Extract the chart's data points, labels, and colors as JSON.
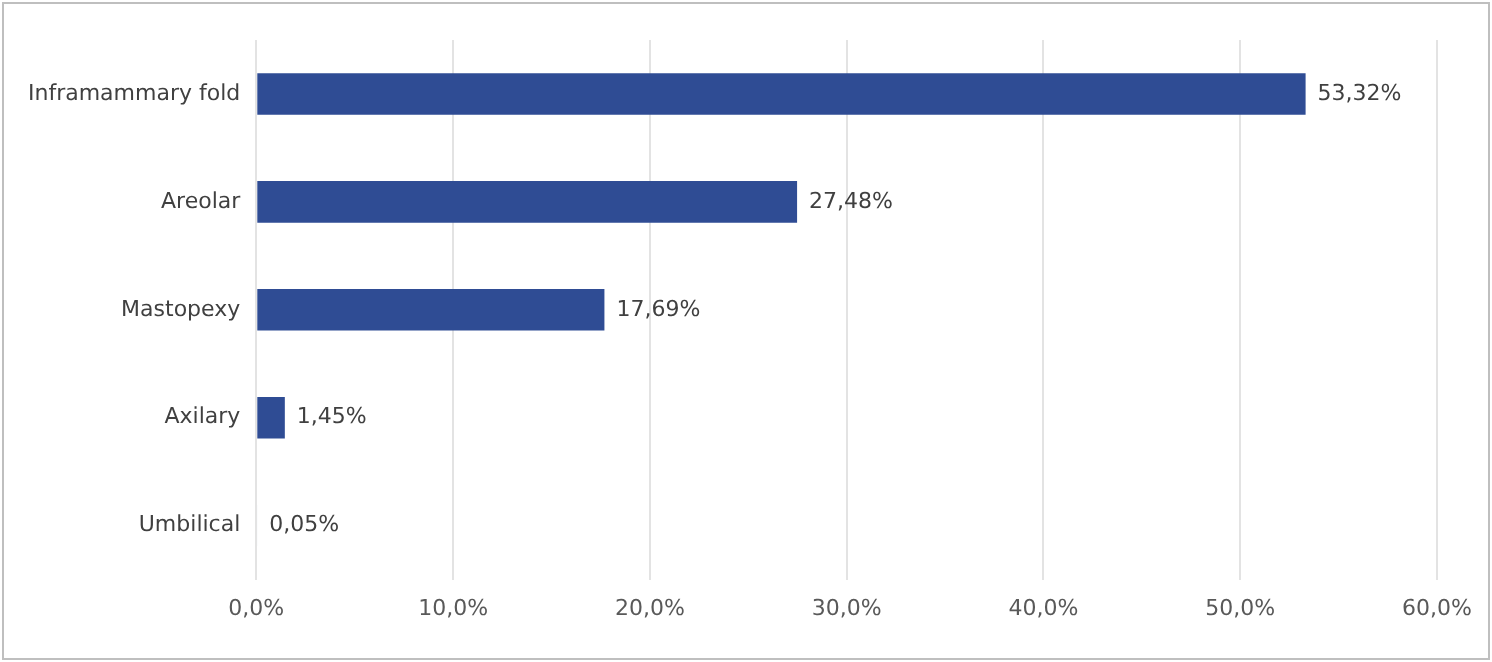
{
  "chart_data": {
    "type": "bar",
    "orientation": "horizontal",
    "categories": [
      "Inframammary fold",
      "Areolar",
      "Mastopexy",
      "Axilary",
      "Umbilical"
    ],
    "values": [
      53.32,
      27.48,
      17.69,
      1.45,
      0.05
    ],
    "value_labels": [
      "53,32%",
      "27,48%",
      "17,69%",
      "1,45%",
      "0,05%"
    ],
    "color": "#2f4c94",
    "xlim": [
      0,
      60
    ],
    "xticks": [
      {
        "value": 0,
        "label": "0,0%"
      },
      {
        "value": 10,
        "label": "10,0%"
      },
      {
        "value": 20,
        "label": "20,0%"
      },
      {
        "value": 30,
        "label": "30,0%"
      },
      {
        "value": 40,
        "label": "40,0%"
      },
      {
        "value": 50,
        "label": "50,0%"
      },
      {
        "value": 60,
        "label": "60,0%"
      }
    ],
    "grid": "x",
    "legend": false
  }
}
